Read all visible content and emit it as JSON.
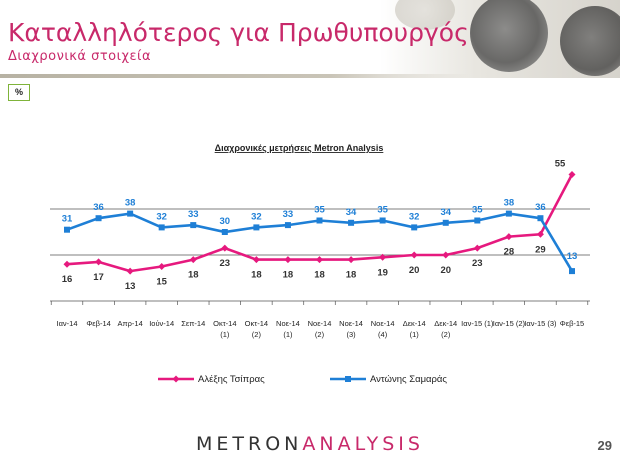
{
  "header": {
    "title": "Καταλληλότερος για Πρωθυπουργός",
    "subtitle": "Διαχρονικά στοιχεία"
  },
  "unit_box": "%",
  "chart_data": {
    "type": "line",
    "title": "Διαχρονικές μετρήσεις Metron Analysis",
    "categories": [
      [
        "Ιαν-14"
      ],
      [
        "Φεβ-14"
      ],
      [
        "Απρ-14"
      ],
      [
        "Ιούν-14"
      ],
      [
        "Σεπ-14"
      ],
      [
        "Οκτ-14",
        "(1)"
      ],
      [
        "Οκτ-14",
        "(2)"
      ],
      [
        "Νοε-14",
        "(1)"
      ],
      [
        "Νοε-14",
        "(2)"
      ],
      [
        "Νοε-14",
        "(3)"
      ],
      [
        "Νοε-14",
        "(4)"
      ],
      [
        "Δεκ-14",
        "(1)"
      ],
      [
        "Δεκ-14",
        "(2)"
      ],
      [
        "Ιαν-15 (1)"
      ],
      [
        "Ιαν-15 (2)"
      ],
      [
        "Ιαν-15 (3)"
      ],
      [
        "Φεβ-15"
      ]
    ],
    "series": [
      {
        "name": "Αλέξης Τσίπρας",
        "color": "#e6197e",
        "values": [
          16,
          17,
          13,
          15,
          18,
          23,
          18,
          18,
          18,
          18,
          19,
          20,
          20,
          23,
          28,
          29,
          55
        ],
        "marker": "diamond",
        "label_position": "below"
      },
      {
        "name": "Αντώνης Σαμαράς",
        "color": "#1e7fd6",
        "values": [
          31,
          36,
          38,
          32,
          33,
          30,
          32,
          33,
          35,
          34,
          35,
          32,
          34,
          35,
          38,
          36,
          13
        ],
        "marker": "square",
        "label_position": "above"
      }
    ],
    "legend_position": "bottom",
    "gridlines": [
      20,
      40
    ]
  },
  "footer": {
    "logo_part1": "METRON",
    "logo_part2": "ANALYSIS",
    "page_number": "29"
  }
}
